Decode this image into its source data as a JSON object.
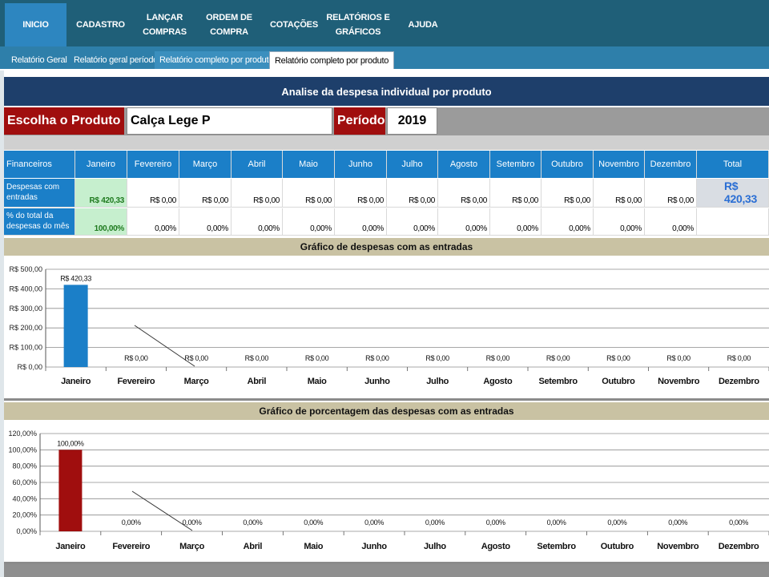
{
  "ribbon": {
    "tabs": [
      {
        "label": "INICIO",
        "active": true
      },
      {
        "label": "CADASTRO"
      },
      {
        "label": "LANÇAR\nCOMPRAS"
      },
      {
        "label": "ORDEM DE\nCOMPRA"
      },
      {
        "label": "COTAÇÕES"
      },
      {
        "label": "RELATÓRIOS E\nGRÁFICOS"
      },
      {
        "label": "AJUDA"
      }
    ]
  },
  "subtabs": [
    {
      "label": "Relatório Geral"
    },
    {
      "label": "Relatório geral período"
    },
    {
      "label": "Relatório completo por produto"
    },
    {
      "label": "Relatório completo por produto",
      "active": true
    }
  ],
  "sheet": {
    "title": "Analise da despesa individual por produto",
    "product_label": "Escolha o Produto",
    "product_value": "Calça Lege P",
    "period_label": "Período",
    "period_value": "2019"
  },
  "table": {
    "header_first": "Financeiros",
    "months": [
      "Janeiro",
      "Fevereiro",
      "Março",
      "Abril",
      "Maio",
      "Junho",
      "Julho",
      "Agosto",
      "Setembro",
      "Outubro",
      "Novembro",
      "Dezembro"
    ],
    "header_total": "Total",
    "row1_label": "Despesas com entradas",
    "row1_values": [
      "R$ 420,33",
      "R$ 0,00",
      "R$ 0,00",
      "R$ 0,00",
      "R$ 0,00",
      "R$ 0,00",
      "R$ 0,00",
      "R$ 0,00",
      "R$ 0,00",
      "R$ 0,00",
      "R$ 0,00",
      "R$ 0,00"
    ],
    "row1_total": "R$ 420,33",
    "row2_label": "% do total da despesas do mês",
    "row2_values": [
      "100,00%",
      "0,00%",
      "0,00%",
      "0,00%",
      "0,00%",
      "0,00%",
      "0,00%",
      "0,00%",
      "0,00%",
      "0,00%",
      "0,00%",
      "0,00%"
    ]
  },
  "colors": {
    "ribbon": "#1f5f78",
    "header_blue": "#1b7fc8",
    "label_red": "#a00e0e",
    "bar_blue": "#1b7fc8",
    "bar_red": "#a00e0e",
    "chart_head": "#c9c2a3"
  },
  "chart_data": [
    {
      "type": "bar",
      "title": "Gráfico de despesas com as entradas",
      "categories": [
        "Janeiro",
        "Fevereiro",
        "Março",
        "Abril",
        "Maio",
        "Junho",
        "Julho",
        "Agosto",
        "Setembro",
        "Outubro",
        "Novembro",
        "Dezembro"
      ],
      "values": [
        420.33,
        0,
        0,
        0,
        0,
        0,
        0,
        0,
        0,
        0,
        0,
        0
      ],
      "data_labels": [
        "R$ 420,33",
        "R$ 0,00",
        "R$ 0,00",
        "R$ 0,00",
        "R$ 0,00",
        "R$ 0,00",
        "R$ 0,00",
        "R$ 0,00",
        "R$ 0,00",
        "R$ 0,00",
        "R$ 0,00",
        "R$ 0,00"
      ],
      "ylim": [
        0,
        500
      ],
      "yticks": [
        "R$ 0,00",
        "R$ 100,00",
        "R$ 200,00",
        "R$ 300,00",
        "R$ 400,00",
        "R$ 500,00"
      ],
      "grid": true,
      "color": "#1b7fc8"
    },
    {
      "type": "bar",
      "title": "Gráfico de porcentagem das despesas com as entradas",
      "categories": [
        "Janeiro",
        "Fevereiro",
        "Março",
        "Abril",
        "Maio",
        "Junho",
        "Julho",
        "Agosto",
        "Setembro",
        "Outubro",
        "Novembro",
        "Dezembro"
      ],
      "values": [
        100,
        0,
        0,
        0,
        0,
        0,
        0,
        0,
        0,
        0,
        0,
        0
      ],
      "data_labels": [
        "100,00%",
        "0,00%",
        "0,00%",
        "0,00%",
        "0,00%",
        "0,00%",
        "0,00%",
        "0,00%",
        "0,00%",
        "0,00%",
        "0,00%",
        "0,00%"
      ],
      "ylim": [
        0,
        120
      ],
      "yticks": [
        "0,00%",
        "20,00%",
        "40,00%",
        "60,00%",
        "80,00%",
        "100,00%",
        "120,00%"
      ],
      "grid": true,
      "color": "#a00e0e"
    }
  ]
}
